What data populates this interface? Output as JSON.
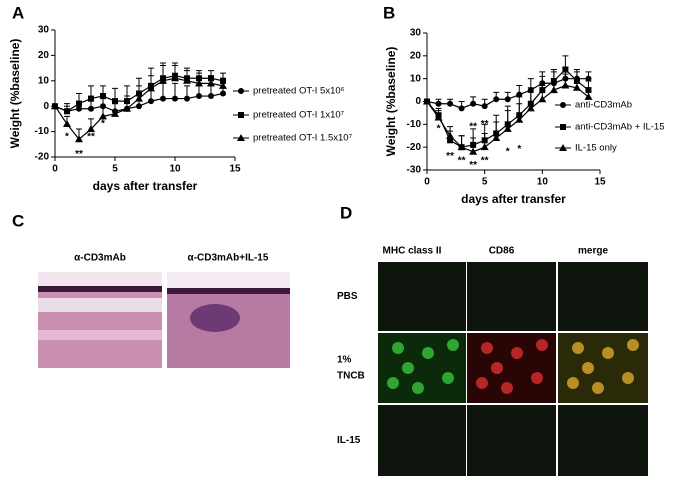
{
  "chart_data": [
    {
      "type": "line",
      "panel_label": "A",
      "xlabel": "days after transfer",
      "ylabel": "Weight (%baseline)",
      "xlim": [
        0,
        15
      ],
      "xticks": [
        0,
        5,
        10,
        15
      ],
      "ylim": [
        -20,
        30
      ],
      "yticks": [
        -20,
        -10,
        0,
        10,
        20,
        30
      ],
      "x": [
        0,
        1,
        2,
        3,
        4,
        5,
        6,
        7,
        8,
        9,
        10,
        11,
        12,
        13,
        14
      ],
      "series": [
        {
          "name": "pretreated OT-I 5x10⁶",
          "marker": "circle",
          "color": "#000000",
          "values": [
            0,
            -2,
            -1,
            -1,
            0,
            -2,
            -1,
            0,
            2,
            3,
            3,
            3,
            4,
            4,
            5
          ],
          "errors": [
            0,
            2,
            3,
            3,
            3,
            4,
            4,
            5,
            6,
            6,
            6,
            5,
            4,
            4,
            4
          ]
        },
        {
          "name": "pretreated OT-I 1x10⁷",
          "marker": "square",
          "color": "#000000",
          "values": [
            0,
            -2,
            1,
            3,
            4,
            2,
            2,
            5,
            8,
            11,
            12,
            11,
            11,
            11,
            10
          ],
          "errors": [
            0,
            3,
            4,
            5,
            4,
            5,
            6,
            6,
            7,
            6,
            5,
            4,
            3,
            3,
            3
          ]
        },
        {
          "name": "pretreated OT-I 1.5x10⁷",
          "marker": "triangle",
          "color": "#000000",
          "values": [
            0,
            -7,
            -13,
            -9,
            -4,
            -3,
            -1,
            3,
            7,
            10,
            11,
            10,
            9,
            9,
            8
          ],
          "errors": [
            0,
            3,
            4,
            4,
            4,
            4,
            5,
            5,
            5,
            6,
            5,
            4,
            4,
            3,
            3
          ]
        }
      ],
      "annotations": [
        {
          "text": "*",
          "x": 1,
          "y": -12
        },
        {
          "text": "**",
          "x": 2,
          "y": -19
        },
        {
          "text": "**",
          "x": 3,
          "y": -12
        },
        {
          "text": "*",
          "x": 4,
          "y": -7
        }
      ]
    },
    {
      "type": "line",
      "panel_label": "B",
      "xlabel": "days after transfer",
      "ylabel": "Weight (%baseline)",
      "xlim": [
        0,
        15
      ],
      "xticks": [
        0,
        5,
        10,
        15
      ],
      "ylim": [
        -30,
        30
      ],
      "yticks": [
        -30,
        -20,
        -10,
        0,
        10,
        20,
        30
      ],
      "x": [
        0,
        1,
        2,
        3,
        4,
        5,
        6,
        7,
        8,
        9,
        10,
        11,
        12,
        13,
        14
      ],
      "series": [
        {
          "name": "anti-CD3mAb",
          "marker": "circle",
          "color": "#000000",
          "values": [
            0,
            -1,
            -1,
            -3,
            -1,
            -2,
            1,
            1,
            3,
            5,
            8,
            8,
            10,
            10,
            10
          ],
          "errors": [
            0,
            2,
            2,
            3,
            3,
            3,
            3,
            3,
            4,
            5,
            5,
            5,
            5,
            4,
            3
          ]
        },
        {
          "name": "anti-CD3mAb + IL-15",
          "marker": "square",
          "color": "#000000",
          "values": [
            0,
            -6,
            -17,
            -20,
            -19,
            -17,
            -14,
            -10,
            -6,
            -1,
            5,
            9,
            14,
            9,
            5
          ],
          "errors": [
            0,
            3,
            4,
            5,
            7,
            7,
            8,
            8,
            8,
            7,
            6,
            5,
            6,
            4,
            4
          ]
        },
        {
          "name": "IL-15 only",
          "marker": "triangle",
          "color": "#000000",
          "values": [
            0,
            -7,
            -15,
            -20,
            -22,
            -20,
            -16,
            -12,
            -8,
            -3,
            1,
            5,
            7,
            6,
            2
          ],
          "errors": [
            0,
            3,
            4,
            5,
            6,
            6,
            7,
            8,
            7,
            7,
            6,
            5,
            5,
            4,
            3
          ]
        }
      ],
      "annotations": [
        {
          "text": "*",
          "x": 1,
          "y": -12
        },
        {
          "text": "**",
          "x": 2,
          "y": -24
        },
        {
          "text": "**",
          "x": 3,
          "y": -26
        },
        {
          "text": "**",
          "x": 4,
          "y": -11
        },
        {
          "text": "**",
          "x": 4,
          "y": -28
        },
        {
          "text": "**",
          "x": 5,
          "y": -10
        },
        {
          "text": "**",
          "x": 5,
          "y": -26
        },
        {
          "text": "*",
          "x": 7,
          "y": -22
        },
        {
          "text": "*",
          "x": 8,
          "y": -21
        }
      ]
    }
  ],
  "panels": {
    "c": {
      "label": "C",
      "captions": [
        "α-CD3mAb",
        "α-CD3mAb+IL-15"
      ]
    },
    "d": {
      "label": "D",
      "columns": [
        "MHC class II",
        "CD86",
        "merge"
      ],
      "rows": [
        [
          "PBS"
        ],
        [
          "1%",
          "TNCB"
        ],
        [
          "IL-15"
        ]
      ]
    }
  }
}
